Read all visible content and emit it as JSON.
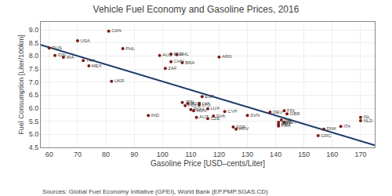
{
  "chart_data": {
    "type": "scatter",
    "title": "Vehicle Fuel Economy and Gasoline Prices, 2016",
    "xlabel": "Gasoline Price [USD–cents/Liter]",
    "ylabel": "Fuel Consumption [Liter/100km]",
    "annotations": [
      "Sources: Global Fuel Economy Initiative (GFEI), World Bank (EP.PMP.SGAS.CD)"
    ],
    "xlim": [
      57,
      175
    ],
    "ylim": [
      4.5,
      9.3
    ],
    "xticks": [
      60,
      70,
      80,
      90,
      100,
      110,
      120,
      130,
      140,
      150,
      160,
      170
    ],
    "yticks": [
      4.5,
      {
        "value": 5,
        "label": "5.0"
      },
      5.5,
      {
        "value": 6,
        "label": "6.0"
      },
      6.5,
      {
        "value": 7,
        "label": "7.0"
      },
      7.5,
      {
        "value": 8,
        "label": "8.0"
      },
      8.5,
      {
        "value": 9,
        "label": "9.0"
      }
    ],
    "grid": true,
    "series": [
      {
        "type": "line",
        "color": "#1A3A6A",
        "x": [
          57,
          175
        ],
        "values": [
          8.42,
          4.58
        ]
      },
      {
        "type": "scatter",
        "color": "#7B1A1A",
        "x": [
          60,
          62,
          65,
          70,
          72,
          74,
          81,
          82,
          86,
          99,
          103,
          105,
          103,
          101,
          107,
          120,
          95,
          107,
          108,
          109,
          110,
          111,
          114,
          113,
          113,
          116,
          112,
          118,
          116,
          122,
          125,
          126,
          130,
          138,
          143,
          144,
          141,
          141,
          142,
          143,
          141,
          155,
          157,
          163,
          170,
          170
        ],
        "values": [
          8.3,
          8.02,
          7.95,
          8.58,
          7.82,
          7.62,
          8.95,
          7.03,
          8.28,
          8.02,
          8.07,
          8.05,
          7.78,
          7.52,
          7.74,
          7.96,
          5.72,
          6.22,
          6.1,
          6.18,
          5.95,
          5.9,
          6.44,
          6.18,
          6.12,
          5.98,
          5.65,
          5.7,
          5.6,
          5.87,
          5.28,
          5.2,
          5.72,
          5.85,
          5.9,
          5.78,
          5.46,
          5.38,
          5.55,
          5.46,
          5.32,
          4.95,
          5.2,
          5.3,
          5.65,
          5.52
        ],
        "labels": [
          "RUS",
          "IDN",
          "IRA",
          "USA",
          "THA",
          "MEX",
          "CAN",
          "UKR",
          "PHL",
          "AUS",
          "PER",
          "CHL",
          "CHN",
          "ZAF",
          "BRA",
          "ARG",
          "IND",
          "JPN",
          "POL",
          "BGR",
          "ROU",
          "HUN",
          "EST",
          "LVA",
          "LTU",
          "LUX",
          "AUT",
          "SVK",
          "CZE",
          "CYP",
          "ESP",
          "HRV",
          "SVN",
          "DEU",
          "FIN",
          "GBR",
          "SWE",
          "MBT",
          "BEL",
          "PRT",
          "FRA",
          "GRC",
          "DNK",
          "ITA",
          "ISL",
          "NLD"
        ]
      }
    ]
  }
}
